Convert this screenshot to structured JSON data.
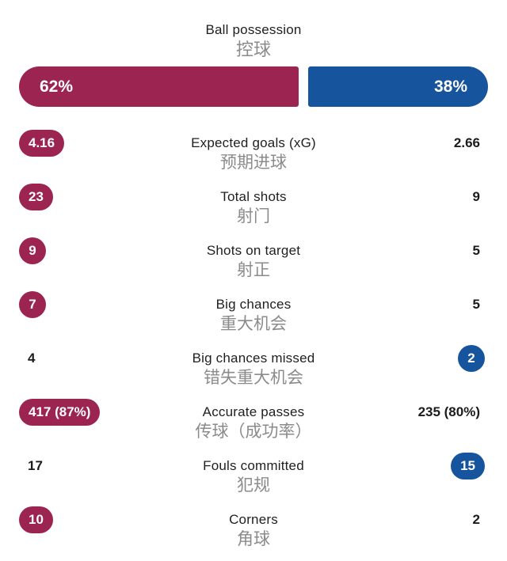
{
  "colors": {
    "home": "#9b2450",
    "away": "#17549e"
  },
  "possession": {
    "label": "Ball possession",
    "label_zh": "控球",
    "home": "62%",
    "away": "38%",
    "home_pct": 62,
    "away_pct": 38
  },
  "rows": [
    {
      "label": "Expected goals (xG)",
      "label_zh": "预期进球",
      "home": "4.16",
      "away": "2.66",
      "highlight": "home"
    },
    {
      "label": "Total shots",
      "label_zh": "射门",
      "home": "23",
      "away": "9",
      "highlight": "home"
    },
    {
      "label": "Shots on target",
      "label_zh": "射正",
      "home": "9",
      "away": "5",
      "highlight": "home"
    },
    {
      "label": "Big chances",
      "label_zh": "重大机会",
      "home": "7",
      "away": "5",
      "highlight": "home"
    },
    {
      "label": "Big chances missed",
      "label_zh": "错失重大机会",
      "home": "4",
      "away": "2",
      "highlight": "away"
    },
    {
      "label": "Accurate passes",
      "label_zh": "传球（成功率）",
      "home": "417 (87%)",
      "away": "235 (80%)",
      "highlight": "home"
    },
    {
      "label": "Fouls committed",
      "label_zh": "犯规",
      "home": "17",
      "away": "15",
      "highlight": "away"
    },
    {
      "label": "Corners",
      "label_zh": "角球",
      "home": "10",
      "away": "2",
      "highlight": "home"
    }
  ]
}
